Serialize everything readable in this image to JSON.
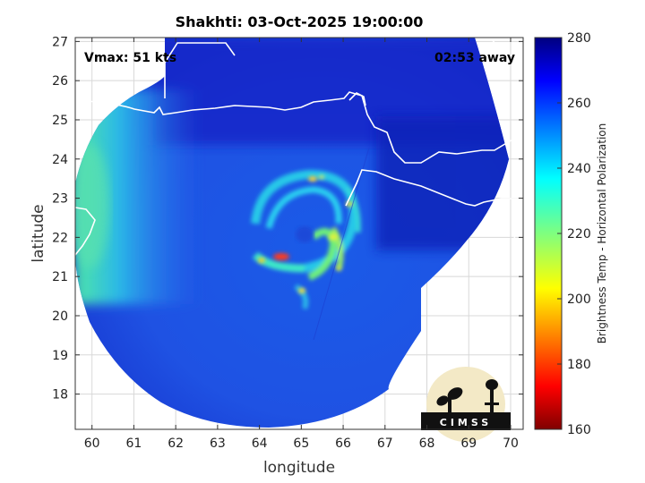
{
  "chart_data": {
    "type": "heatmap",
    "title": "Shakhti: 03-Oct-2025 19:00:00",
    "xlabel": "longitude",
    "ylabel": "latitude",
    "xlim": [
      59.6,
      70.3
    ],
    "ylim": [
      17.1,
      27.1
    ],
    "xticks": [
      "60",
      "61",
      "62",
      "63",
      "64",
      "65",
      "66",
      "67",
      "68",
      "69",
      "70"
    ],
    "yticks": [
      "18",
      "19",
      "20",
      "21",
      "22",
      "23",
      "24",
      "25",
      "26",
      "27"
    ],
    "grid": true,
    "storm_center": {
      "lon": 65.3,
      "lat": 22.2
    },
    "annotations": {
      "vmax": "Vmax: 51 kts",
      "time_away": "02:53 away"
    },
    "colorbar": {
      "label": "Brightness Temp - Horizontal Polarization",
      "min": 160,
      "max": 280,
      "ticks": [
        "160",
        "180",
        "200",
        "220",
        "240",
        "260",
        "280"
      ],
      "colormap": "jet"
    },
    "logo": {
      "text": "CIMSS"
    }
  }
}
